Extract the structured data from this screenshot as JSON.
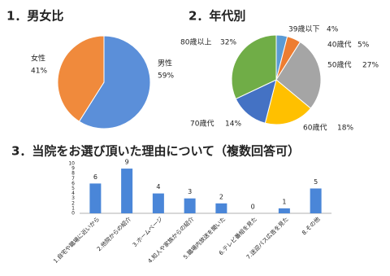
{
  "chart_data": [
    {
      "type": "pie",
      "title": "1．男女比",
      "categories": [
        "男性",
        "女性"
      ],
      "values": [
        59,
        41
      ],
      "value_labels": [
        "59%",
        "41%"
      ],
      "colors": [
        "#5b8fd9",
        "#f08a3c"
      ]
    },
    {
      "type": "pie",
      "title": "2．年代別",
      "categories": [
        "39歳以下",
        "40歳代",
        "50歳代",
        "60歳代",
        "70歳代",
        "80歳以上"
      ],
      "values": [
        4,
        5,
        27,
        18,
        14,
        32
      ],
      "value_labels": [
        "4%",
        "5%",
        "27%",
        "18%",
        "14%",
        "32%"
      ],
      "colors": [
        "#5b9bd5",
        "#ed7d31",
        "#a5a5a5",
        "#ffc000",
        "#4472c4",
        "#70ad47"
      ]
    },
    {
      "type": "bar",
      "title": "3．当院をお選び頂いた理由について（複数回答可）",
      "categories": [
        "1.自宅や職場に近いから",
        "2.他院からの紹介",
        "3.ホームページ",
        "4.知人や家族からの紹介",
        "5.職場内放送を聞いた",
        "6.テレビ番組を見た",
        "7.送迎バス広告を見た",
        "8.その他"
      ],
      "values": [
        6,
        9,
        4,
        3,
        2,
        0,
        1,
        5
      ],
      "color": "#4a86d8",
      "ylim": [
        0,
        10
      ],
      "yticks": [
        0,
        1,
        2,
        3,
        4,
        5,
        6,
        7,
        8,
        9,
        10
      ]
    }
  ]
}
